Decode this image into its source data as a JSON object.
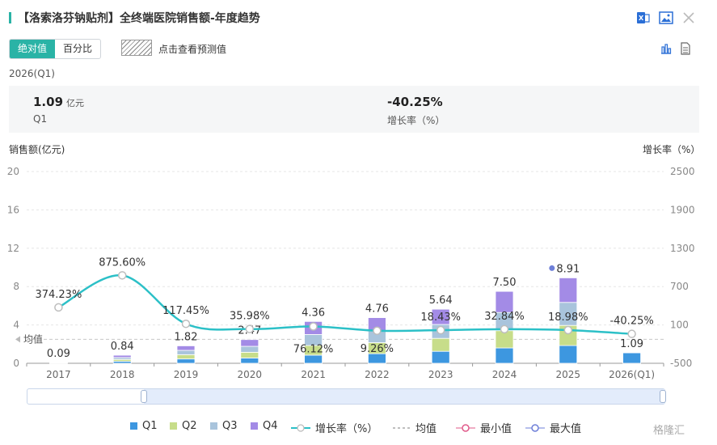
{
  "header": {
    "title": "【洛索洛芬钠贴剂】全终端医院销售额-年度趋势",
    "icons": [
      "excel-icon",
      "image-icon",
      "close-icon"
    ]
  },
  "controls": {
    "tab_absolute": "绝对值",
    "tab_percent": "百分比",
    "forecast_label": "点击查看预测值",
    "view_icons": [
      "bar-chart-icon",
      "table-icon"
    ]
  },
  "summary": {
    "period": "2026(Q1)",
    "value": "1.09",
    "value_unit": "亿元",
    "value_label": "Q1",
    "growth": "-40.25%",
    "growth_label": "增长率（%）"
  },
  "colors": {
    "accent": "#2ab3a6",
    "Q1": "#3d97e0",
    "Q2": "#c7dd8a",
    "Q3": "#a9c4dc",
    "Q4": "#a38be6",
    "line": "#2cc0c7",
    "min": "#e05a8a",
    "max": "#6e7fd8"
  },
  "chart_data": {
    "type": "bar",
    "stacked": true,
    "categories": [
      "2017",
      "2018",
      "2019",
      "2020",
      "2021",
      "2022",
      "2023",
      "2024",
      "2025",
      "2026(Q1)"
    ],
    "series": [
      {
        "name": "Q1",
        "values": [
          0.02,
          0.2,
          0.45,
          0.55,
          0.85,
          1.0,
          1.25,
          1.6,
          1.85,
          1.09
        ]
      },
      {
        "name": "Q2",
        "values": [
          0.02,
          0.2,
          0.45,
          0.6,
          1.0,
          1.15,
          1.35,
          1.8,
          2.1,
          0
        ]
      },
      {
        "name": "Q3",
        "values": [
          0.02,
          0.2,
          0.45,
          0.62,
          1.15,
          1.25,
          1.45,
          1.9,
          2.4,
          0
        ]
      },
      {
        "name": "Q4",
        "values": [
          0.03,
          0.24,
          0.47,
          0.7,
          1.36,
          1.36,
          1.59,
          2.2,
          2.56,
          0
        ]
      }
    ],
    "totals": [
      "0.09",
      "0.84",
      "1.82",
      "2.47",
      "4.36",
      "4.76",
      "5.64",
      "7.50",
      "8.91",
      "1.09"
    ],
    "line": {
      "name": "增长率（%）",
      "values": [
        374.23,
        875.6,
        117.45,
        35.98,
        76.12,
        9.26,
        18.43,
        32.84,
        18.98,
        -40.25
      ],
      "labels": [
        "374.23%",
        "875.60%",
        "117.45%",
        "35.98%",
        "76.12%",
        "9.26%",
        "18.43%",
        "32.84%",
        "18.98%",
        "-40.25%"
      ]
    },
    "mean_label": "均值",
    "mean_value": 2.5,
    "max_marker_index": 8,
    "ylabel": "销售额(亿元)",
    "y2label": "增长率（%）",
    "ylim": [
      0,
      20
    ],
    "yticks": [
      "0",
      "4",
      "8",
      "12",
      "16",
      "20"
    ],
    "y2lim": [
      -500,
      2500
    ],
    "y2ticks": [
      "-500",
      "100",
      "700",
      "1300",
      "1900",
      "2500"
    ],
    "legend": [
      "Q1",
      "Q2",
      "Q3",
      "Q4",
      "增长率（%）",
      "均值",
      "最小值",
      "最大值"
    ],
    "legend_position": "bottom"
  },
  "watermark": "格隆汇"
}
